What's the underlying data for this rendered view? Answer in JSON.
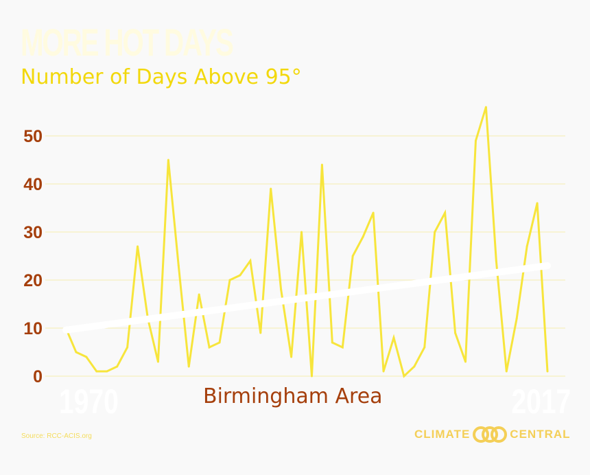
{
  "title": "MORE HOT DAYS",
  "subtitle": "Number of Days Above 95°",
  "area_label": "Birmingham Area",
  "year_start": "1970",
  "year_end": "2017",
  "source": "Source: RCC-ACIS.org",
  "logo": {
    "left": "CLIMATE",
    "right": "CENTRAL",
    "icon": "climate-central-logo-icon"
  },
  "colors": {
    "background": "#f9f9f9",
    "series": "#f7e53c",
    "trend": "#ffffff",
    "grid": "#f5edb0",
    "axis_labels": "#a53f0c",
    "subtitle": "#f2d80c"
  },
  "chart_data": {
    "type": "line",
    "title": "MORE HOT DAYS",
    "subtitle": "Number of Days Above 95°",
    "xlabel": "",
    "ylabel": "",
    "xlim": [
      1970,
      2017
    ],
    "ylim": [
      0,
      55
    ],
    "yticks": [
      0,
      10,
      20,
      30,
      40,
      50
    ],
    "grid": true,
    "x": [
      1970,
      1971,
      1972,
      1973,
      1974,
      1975,
      1976,
      1977,
      1978,
      1979,
      1980,
      1981,
      1982,
      1983,
      1984,
      1985,
      1986,
      1987,
      1988,
      1989,
      1990,
      1991,
      1992,
      1993,
      1994,
      1995,
      1996,
      1997,
      1998,
      1999,
      2000,
      2001,
      2002,
      2003,
      2004,
      2005,
      2006,
      2007,
      2008,
      2009,
      2010,
      2011,
      2012,
      2013,
      2014,
      2015,
      2016,
      2017
    ],
    "series": [
      {
        "values": [
          10,
          5,
          4,
          1,
          1,
          2,
          6,
          27,
          12,
          3,
          45,
          23,
          2,
          17,
          6,
          7,
          20,
          21,
          24,
          9,
          39,
          18,
          4,
          30,
          0,
          44,
          7,
          6,
          25,
          29,
          34,
          1,
          8,
          0,
          2,
          6,
          30,
          34,
          9,
          3,
          49,
          56,
          24,
          1,
          12,
          27,
          36,
          1
        ]
      }
    ],
    "trend": {
      "x": [
        1970,
        2017
      ],
      "y": [
        9.6,
        23
      ]
    }
  }
}
